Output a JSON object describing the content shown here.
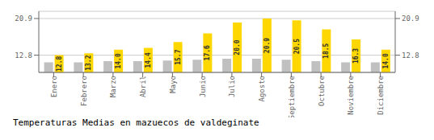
{
  "chart_data": {
    "type": "bar",
    "title": "Temperaturas Medias en mazuecos de valdeginate",
    "categories": [
      "Enero",
      "Febrero",
      "Marzo",
      "Abril",
      "Mayo",
      "Junio",
      "Julio",
      "Agosto",
      "Septiembre",
      "Octubre",
      "Noviembre",
      "Diciembre"
    ],
    "series": [
      {
        "color": "#C0C0C0",
        "values": [
          11.2,
          11.2,
          11.5,
          11.5,
          11.6,
          11.8,
          12.0,
          12.0,
          11.8,
          11.5,
          11.2,
          11.2
        ]
      },
      {
        "color": "#FFD700",
        "values": [
          12.8,
          13.2,
          14.0,
          14.4,
          15.7,
          17.6,
          20.0,
          20.9,
          20.5,
          18.5,
          16.3,
          14.0
        ],
        "value_labels": [
          "12.8",
          "13.2",
          "14.0",
          "14.4",
          "15.7",
          "17.6",
          "20.0",
          "20.9",
          "20.5",
          "18.5",
          "16.3",
          "14.0"
        ],
        "data_labels": true
      }
    ],
    "ylim": [
      9.0,
      22.5
    ],
    "yticks": [
      12.8,
      20.9
    ],
    "y2lim": [
      9.0,
      22.5
    ],
    "y2ticks": [
      12.8,
      20.9
    ],
    "grid": true
  }
}
